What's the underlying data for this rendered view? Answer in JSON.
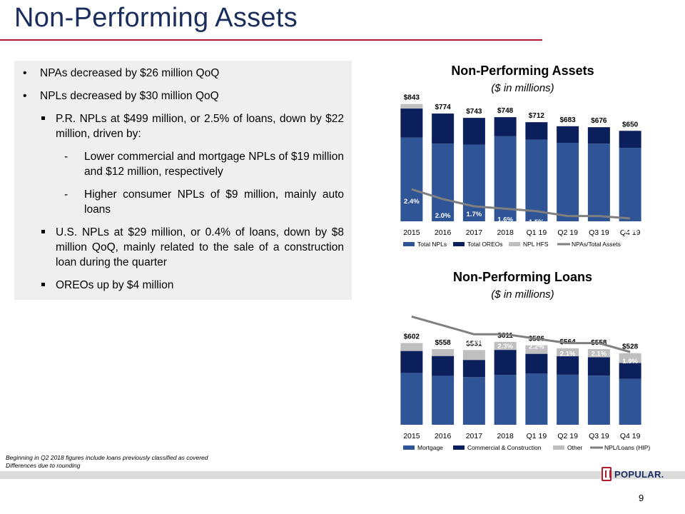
{
  "slide": {
    "title": "Non-Performing Assets",
    "page_number": "9"
  },
  "summary": {
    "bullet_1": "NPAs decreased by $26 million QoQ",
    "bullet_2": "NPLs decreased by $30 million QoQ",
    "sub_1": "P.R. NPLs at $499 million, or 2.5% of loans, down by $22 million, driven by:",
    "dash_1": "Lower commercial and mortgage NPLs of $19 million and $12 million, respectively",
    "dash_2": "Higher consumer NPLs of $9 million, mainly auto loans",
    "sub_2": "U.S. NPLs at $29 million, or 0.4% of loans, down by $8 million QoQ, mainly related to the sale of a construction loan during the quarter",
    "sub_3": "OREOs up by $4 million"
  },
  "chart_npa_header": {
    "title": "Non-Performing Assets",
    "subtitle": "($ in millions)"
  },
  "chart_npl_header": {
    "title": "Non-Performing Loans",
    "subtitle": "($ in millions)"
  },
  "footnotes": {
    "line_1": "Beginning in Q2 2018 figures include loans previously classified as covered",
    "line_2": "Differences due to rounding"
  },
  "logo": {
    "text": "POPULAR."
  },
  "colors": {
    "brand_navy": "#1a2d5c",
    "brand_red": "#b01c2e",
    "series_mid_blue": "#2f5597",
    "series_dark_navy": "#0b1f5c",
    "series_gray": "#bfbfbf",
    "line_gray": "#7f7f7f"
  },
  "chart_data": [
    {
      "type": "bar",
      "stacked": true,
      "title": "Non-Performing Assets",
      "subtitle": "($ in millions)",
      "categories": [
        "2015",
        "2016",
        "2017",
        "2018",
        "Q1 19",
        "Q2 19",
        "Q3 19",
        "Q4 19"
      ],
      "series": [
        {
          "name": "Total NPLs",
          "values": [
            602,
            558,
            551,
            611,
            586,
            564,
            558,
            528
          ]
        },
        {
          "name": "Total OREOs",
          "values": [
            208,
            216,
            192,
            137,
            126,
            119,
            118,
            122
          ]
        },
        {
          "name": "NPL HFS",
          "values": [
            33,
            0,
            0,
            0,
            0,
            0,
            0,
            0
          ]
        }
      ],
      "totals": [
        "$843",
        "$774",
        "$743",
        "$748",
        "$712",
        "$683",
        "$676",
        "$650"
      ],
      "line": {
        "name": "NPAs/Total Assets",
        "values": [
          2.4,
          2.0,
          1.7,
          1.6,
          1.5,
          1.3,
          1.3,
          1.2
        ],
        "labels": [
          "2.4%",
          "2.0%",
          "1.7%",
          "1.6%",
          "1.5%",
          "1.3%",
          "1.3%",
          "1.2%"
        ]
      },
      "legend": [
        "Total NPLs",
        "Total OREOs",
        "NPL HFS",
        "NPAs/Total Assets"
      ],
      "legend_position": "bottom"
    },
    {
      "type": "bar",
      "stacked": true,
      "title": "Non-Performing Loans",
      "subtitle": "($ in millions)",
      "categories": [
        "2015",
        "2016",
        "2017",
        "2018",
        "Q1 19",
        "Q2 19",
        "Q3 19",
        "Q4 19"
      ],
      "series": [
        {
          "name": "Mortgage",
          "values": [
            382,
            361,
            351,
            367,
            377,
            369,
            362,
            338
          ]
        },
        {
          "name": "Commercial & Construction",
          "values": [
            162,
            146,
            127,
            185,
            146,
            136,
            136,
            118
          ]
        },
        {
          "name": "Other",
          "values": [
            58,
            51,
            73,
            59,
            63,
            59,
            60,
            72
          ]
        }
      ],
      "totals": [
        "$602",
        "$558",
        "$551",
        "$611",
        "$586",
        "$564",
        "$558",
        "$528"
      ],
      "line": {
        "name": "NPL/Loans (HIP)",
        "values": [
          2.7,
          2.5,
          2.3,
          2.3,
          2.2,
          2.1,
          2.1,
          1.9
        ],
        "labels": [
          "2.7%",
          "2.5%",
          "2.3%",
          "2.3%",
          "2.2%",
          "2.1%",
          "2.1%",
          "1.9%"
        ]
      },
      "legend": [
        "Mortgage",
        "Commercial & Construction",
        "Other",
        "NPL/Loans (HIP)"
      ],
      "legend_position": "bottom"
    }
  ]
}
